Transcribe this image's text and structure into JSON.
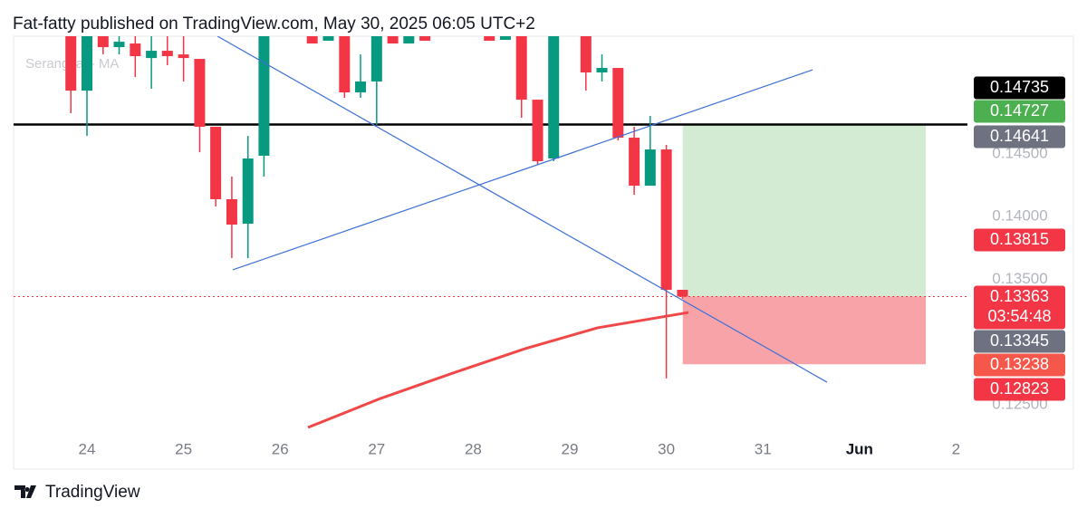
{
  "chart_data": {
    "type": "candlestick",
    "attribution": "Fat-fatty published on TradingView.com, May 30, 2025 06:05 UTC+2",
    "indicator_label": "Serangkai - MA",
    "brand": "TradingView",
    "up_color": "#089981",
    "down_color": "#f23645",
    "xlim": [
      23.24,
      33.118
    ],
    "ylim": [
      0.12247,
      0.15439
    ],
    "xticks": [
      24,
      25,
      26,
      27,
      28,
      29,
      30,
      31,
      {
        "value": 32,
        "label": "Jun"
      },
      {
        "value": 33,
        "label": "2"
      }
    ],
    "yticks": [
      {
        "value": 0.145,
        "label": "0.14500"
      },
      {
        "value": 0.14,
        "label": "0.14000"
      },
      {
        "value": 0.135,
        "label": "0.13500"
      },
      {
        "value": 0.125,
        "label": "0.12500"
      }
    ],
    "candles": [
      {
        "x": 23.833,
        "open": 0.15439,
        "high": 0.15439,
        "low": 0.14825,
        "close": 0.15005
      },
      {
        "x": 24.0,
        "open": 0.15005,
        "high": 0.15439,
        "low": 0.14644,
        "close": 0.15439
      },
      {
        "x": 24.167,
        "open": 0.15439,
        "high": 0.15439,
        "low": 0.15294,
        "close": 0.15352
      },
      {
        "x": 24.333,
        "open": 0.15352,
        "high": 0.15439,
        "low": 0.15294,
        "close": 0.15395
      },
      {
        "x": 24.5,
        "open": 0.15381,
        "high": 0.15439,
        "low": 0.15114,
        "close": 0.1528
      },
      {
        "x": 24.667,
        "open": 0.15265,
        "high": 0.15439,
        "low": 0.1502,
        "close": 0.15323
      },
      {
        "x": 24.833,
        "open": 0.15323,
        "high": 0.15439,
        "low": 0.15208,
        "close": 0.1528
      },
      {
        "x": 25.0,
        "open": 0.15294,
        "high": 0.15439,
        "low": 0.15078,
        "close": 0.15265
      },
      {
        "x": 25.167,
        "open": 0.15258,
        "high": 0.15258,
        "low": 0.14514,
        "close": 0.14717
      },
      {
        "x": 25.333,
        "open": 0.14717,
        "high": 0.14717,
        "low": 0.14081,
        "close": 0.14139
      },
      {
        "x": 25.5,
        "open": 0.14139,
        "high": 0.1432,
        "low": 0.1367,
        "close": 0.13937
      },
      {
        "x": 25.667,
        "open": 0.13944,
        "high": 0.14644,
        "low": 0.1367,
        "close": 0.14464
      },
      {
        "x": 25.833,
        "open": 0.14486,
        "high": 0.15439,
        "low": 0.1432,
        "close": 0.15439
      },
      {
        "x": 26.333,
        "open": 0.15439,
        "high": 0.15439,
        "low": 0.15381,
        "close": 0.15381
      },
      {
        "x": 26.5,
        "open": 0.15403,
        "high": 0.15439,
        "low": 0.15403,
        "close": 0.15439
      },
      {
        "x": 26.667,
        "open": 0.15439,
        "high": 0.15439,
        "low": 0.14948,
        "close": 0.14991
      },
      {
        "x": 26.833,
        "open": 0.14991,
        "high": 0.15294,
        "low": 0.14948,
        "close": 0.15078
      },
      {
        "x": 27.0,
        "open": 0.15078,
        "high": 0.15439,
        "low": 0.14731,
        "close": 0.15439
      },
      {
        "x": 27.167,
        "open": 0.15439,
        "high": 0.15439,
        "low": 0.15381,
        "close": 0.15381
      },
      {
        "x": 27.333,
        "open": 0.15381,
        "high": 0.15439,
        "low": 0.15381,
        "close": 0.15439
      },
      {
        "x": 27.5,
        "open": 0.15439,
        "high": 0.15439,
        "low": 0.15403,
        "close": 0.15403
      },
      {
        "x": 28.167,
        "open": 0.15439,
        "high": 0.15439,
        "low": 0.15403,
        "close": 0.15403
      },
      {
        "x": 28.333,
        "open": 0.1541,
        "high": 0.15439,
        "low": 0.1541,
        "close": 0.15439
      },
      {
        "x": 28.5,
        "open": 0.15439,
        "high": 0.15439,
        "low": 0.14789,
        "close": 0.14933
      },
      {
        "x": 28.667,
        "open": 0.14933,
        "high": 0.14933,
        "low": 0.14413,
        "close": 0.14442
      },
      {
        "x": 28.833,
        "open": 0.14464,
        "high": 0.15439,
        "low": 0.14442,
        "close": 0.15439
      },
      {
        "x": 29.167,
        "open": 0.15439,
        "high": 0.15439,
        "low": 0.15005,
        "close": 0.1515
      },
      {
        "x": 29.333,
        "open": 0.1515,
        "high": 0.15294,
        "low": 0.15078,
        "close": 0.15186
      },
      {
        "x": 29.5,
        "open": 0.15186,
        "high": 0.15186,
        "low": 0.14608,
        "close": 0.1463
      },
      {
        "x": 29.667,
        "open": 0.1463,
        "high": 0.14717,
        "low": 0.14175,
        "close": 0.14247
      },
      {
        "x": 29.833,
        "open": 0.14247,
        "high": 0.14803,
        "low": 0.14247,
        "close": 0.14536
      },
      {
        "x": 30.0,
        "open": 0.14536,
        "high": 0.14572,
        "low": 0.1271,
        "close": 0.13417
      },
      {
        "x": 30.167,
        "open": 0.13417,
        "high": 0.13417,
        "low": 0.13345,
        "close": 0.13363
      }
    ],
    "moving_average": {
      "color": "#f04848",
      "x": [
        26.289,
        27.039,
        27.79,
        28.54,
        29.29,
        30.229
      ],
      "values": [
        0.12319,
        0.1255,
        0.12753,
        0.12948,
        0.13114,
        0.13236
      ]
    },
    "trend_lines": [
      {
        "color": "#3d6fd6",
        "x": [
          25.351,
          31.664
        ],
        "values": [
          0.15439,
          0.1268
        ]
      },
      {
        "color": "#3d6fd6",
        "x": [
          25.51,
          31.514
        ],
        "values": [
          0.13576,
          0.15171
        ]
      }
    ],
    "horizontal_line": {
      "value": 0.14735,
      "color": "#000000"
    },
    "price_line": {
      "value": 0.13363,
      "color": "#f23645"
    },
    "position": {
      "x_start": 30.17,
      "x_end": 32.687,
      "entry": 0.13363,
      "target": 0.14735,
      "stop": 0.12823,
      "target_color": "#d2ebd2",
      "stop_color": "#f8a3a8"
    },
    "price_labels": [
      {
        "value": 0.14735,
        "color": "#000000"
      },
      {
        "value": 0.14727,
        "color": "#4caf50"
      },
      {
        "value": 0.14641,
        "color": "#6e7180"
      },
      {
        "value": 0.13815,
        "color": "#f23645"
      },
      {
        "value": 0.13363,
        "color": "#f23645",
        "countdown": "03:54:48"
      },
      {
        "value": 0.13345,
        "color": "#6e7180"
      },
      {
        "value": 0.13238,
        "color": "#f5584a"
      },
      {
        "value": 0.12823,
        "color": "#f23645"
      }
    ]
  }
}
